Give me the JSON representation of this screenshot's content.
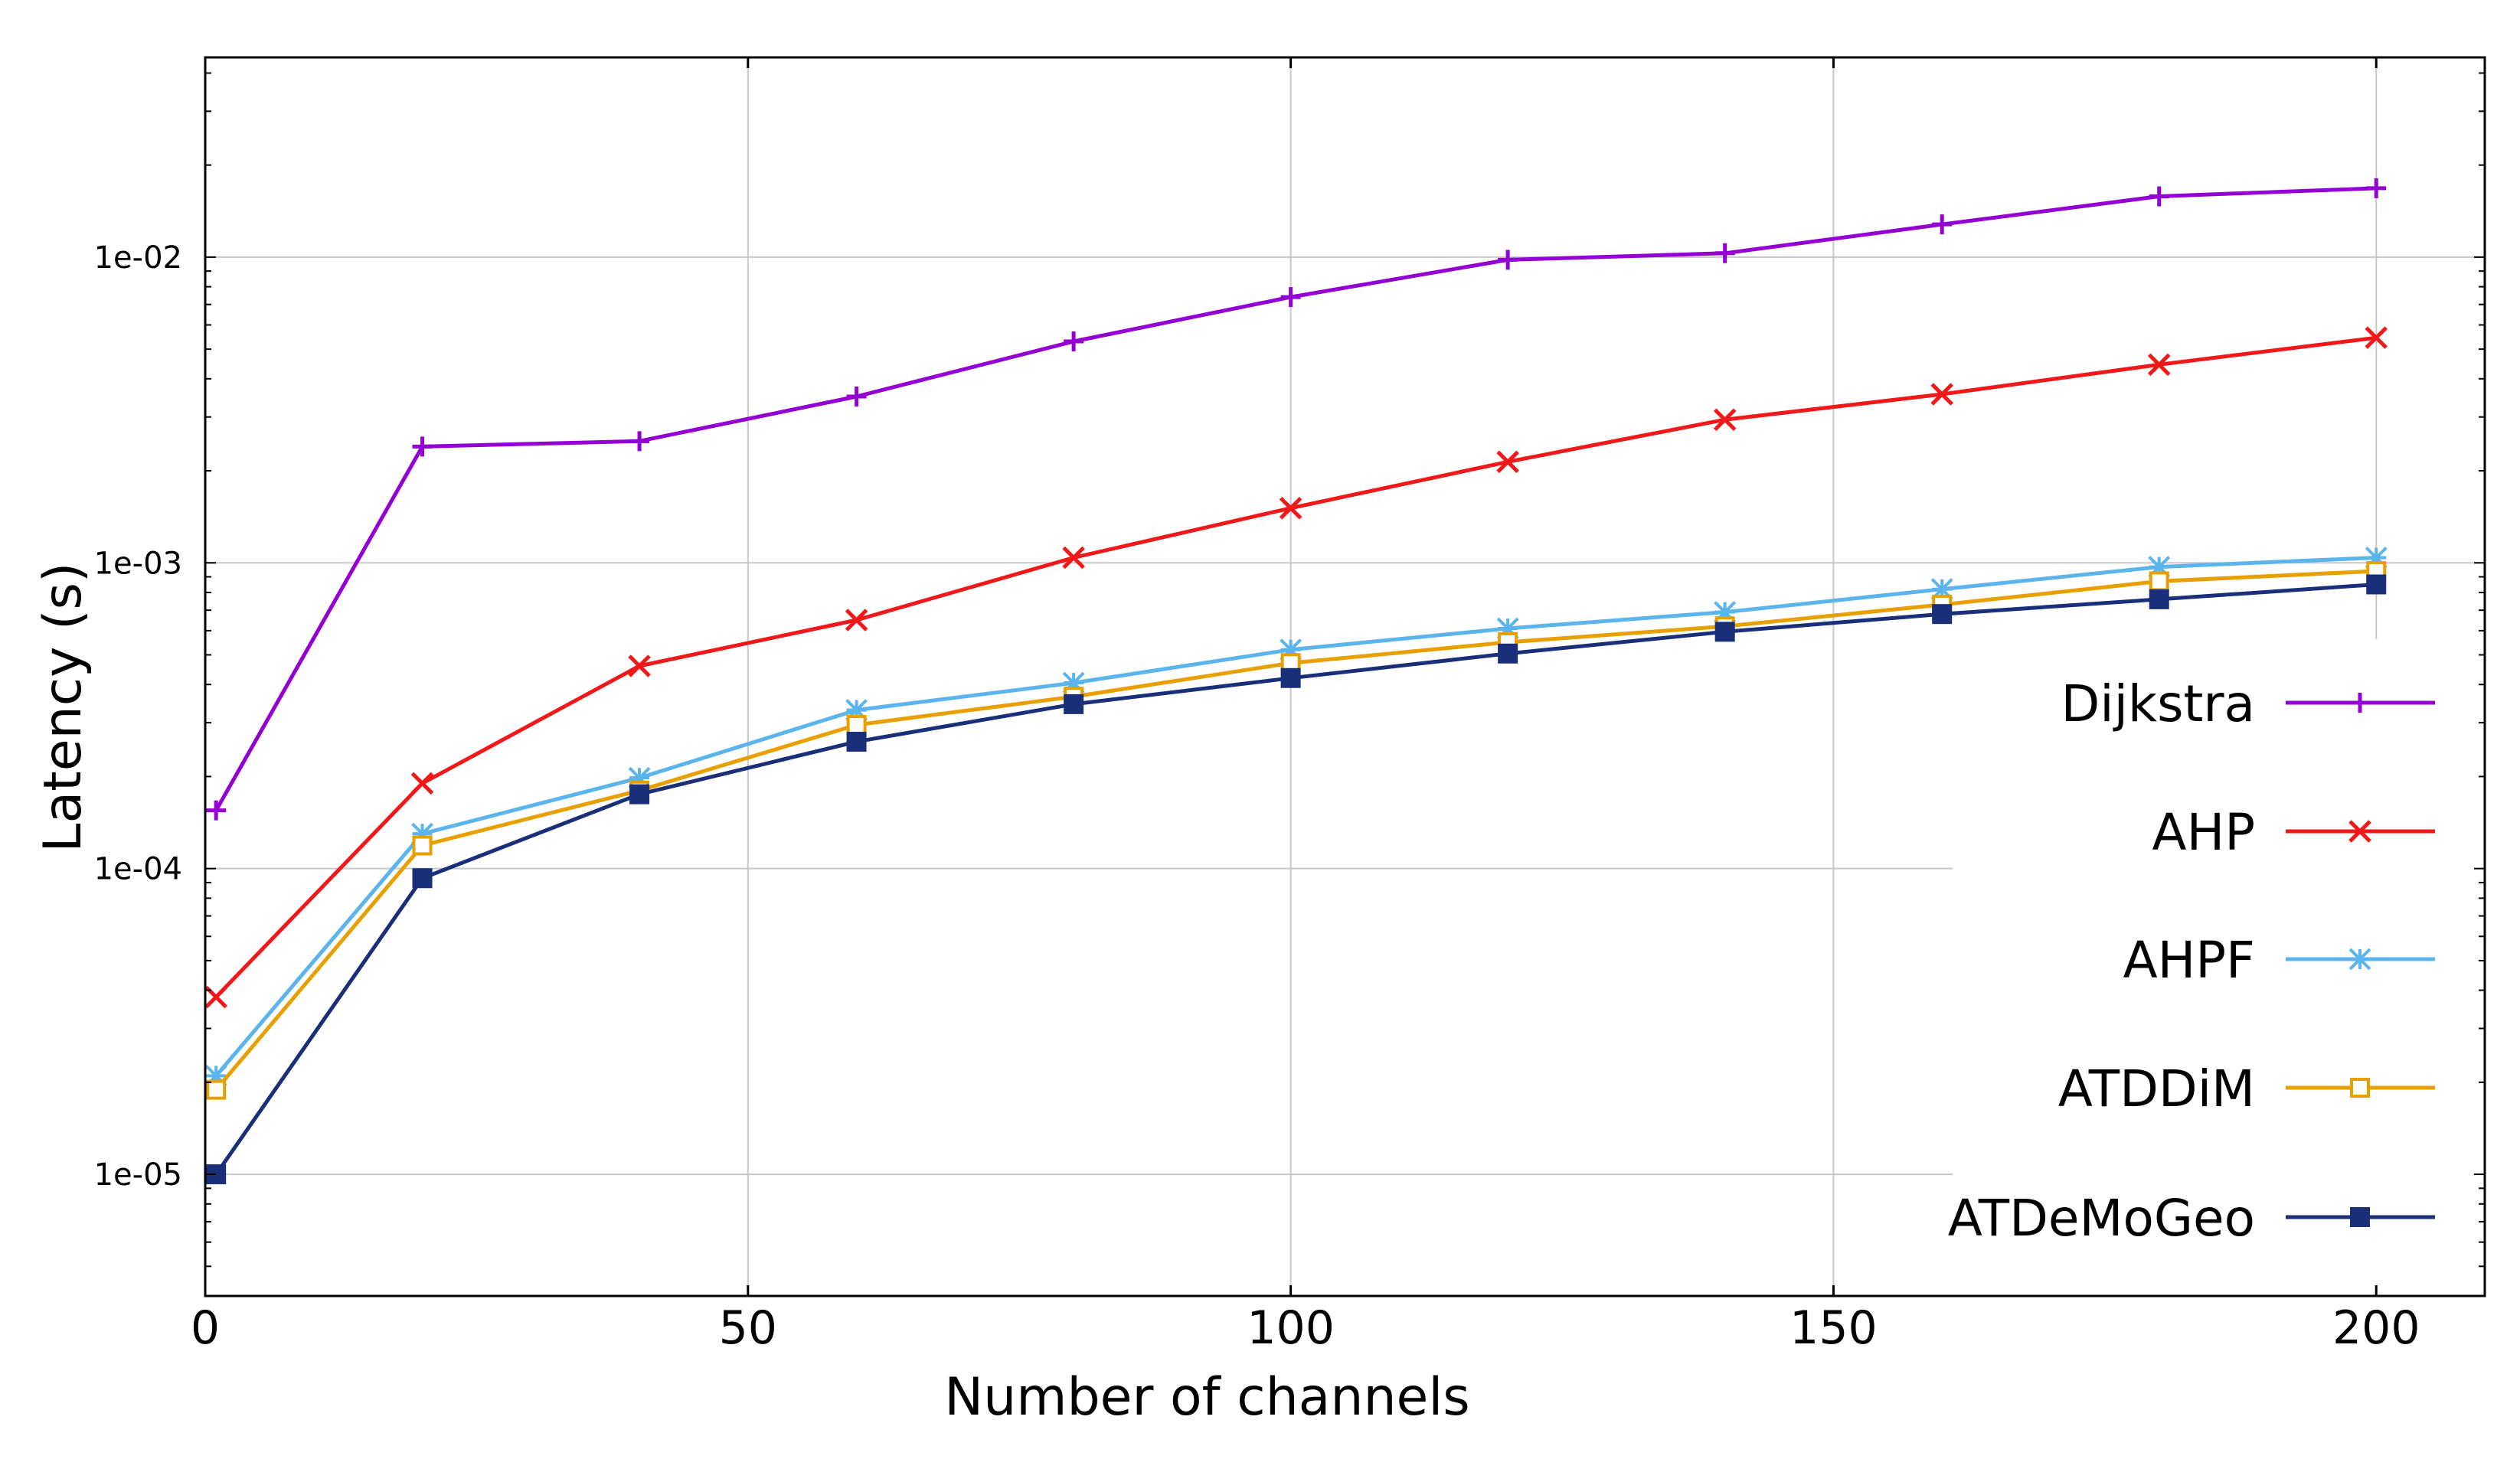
{
  "chart_data": {
    "type": "line",
    "title": "",
    "xlabel": "Number of channels",
    "ylabel": "Latency (s)",
    "xlim": [
      0,
      210
    ],
    "ylim": [
      4e-06,
      0.045
    ],
    "yscale": "log",
    "x_ticks": [
      0,
      50,
      100,
      150,
      200
    ],
    "x_tick_labels": [
      "0",
      "50",
      "100",
      "150",
      "200"
    ],
    "y_ticks": [
      1e-05,
      0.0001,
      0.001,
      0.01
    ],
    "y_tick_labels": [
      "1e-05",
      "1e-04",
      "1e-03",
      "1e-02"
    ],
    "grid": true,
    "legend_position": "bottom-right",
    "x": [
      1,
      20,
      40,
      60,
      80,
      100,
      120,
      140,
      160,
      180,
      200
    ],
    "series": [
      {
        "name": "Dijkstra",
        "color": "#9400D3",
        "marker": "plus",
        "values": [
          0.000155,
          0.0024,
          0.0025,
          0.0035,
          0.0053,
          0.0074,
          0.0098,
          0.0103,
          0.0128,
          0.0158,
          0.0168
        ]
      },
      {
        "name": "AHP",
        "color": "#F01818",
        "marker": "cross",
        "values": [
          3.8e-05,
          0.00019,
          0.00046,
          0.00065,
          0.00104,
          0.00151,
          0.00214,
          0.00294,
          0.00356,
          0.00445,
          0.00545
        ]
      },
      {
        "name": "AHPF",
        "color": "#5BB4EC",
        "marker": "star",
        "values": [
          2.1e-05,
          0.00013,
          0.000198,
          0.00033,
          0.000405,
          0.00052,
          0.00061,
          0.00069,
          0.00082,
          0.00097,
          0.00104
        ]
      },
      {
        "name": "ATDDiM",
        "color": "#E8A000",
        "marker": "open-square",
        "values": [
          1.89e-05,
          0.000119,
          0.00018,
          0.000295,
          0.000365,
          0.00047,
          0.00055,
          0.00062,
          0.00073,
          0.00087,
          0.00094
        ]
      },
      {
        "name": "ATDeMoGeo",
        "color": "#1A2F7A",
        "marker": "filled-square",
        "values": [
          1e-05,
          9.3e-05,
          0.000175,
          0.00026,
          0.000345,
          0.00042,
          0.000505,
          0.000595,
          0.00068,
          0.00076,
          0.00085
        ]
      }
    ]
  }
}
